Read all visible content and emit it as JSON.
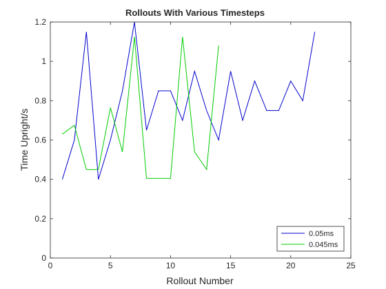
{
  "chart_data": {
    "type": "line",
    "title": "Rollouts With Various Timesteps",
    "xlabel": "Rollout Number",
    "ylabel": "Time Upright/s",
    "xlim": [
      0,
      25
    ],
    "ylim": [
      0,
      1.2
    ],
    "xticks": [
      "0",
      "5",
      "10",
      "15",
      "20",
      "25"
    ],
    "yticks": [
      "0",
      "0.2",
      "0.4",
      "0.6",
      "0.8",
      "1",
      "1.2"
    ],
    "grid": false,
    "legend_position": "bottom-right",
    "series": [
      {
        "name": "0.05ms",
        "color": "#0000cc",
        "x": [
          1,
          2,
          3,
          4,
          5,
          6,
          7,
          8,
          9,
          10,
          11,
          12,
          13,
          14,
          15,
          16,
          17,
          18,
          19,
          20,
          21,
          22
        ],
        "y": [
          0.4,
          0.6,
          1.15,
          0.4,
          0.6,
          0.85,
          1.2,
          0.65,
          0.85,
          0.85,
          0.7,
          0.95,
          0.75,
          0.6,
          0.95,
          0.7,
          0.9,
          0.75,
          0.75,
          0.9,
          0.8,
          1.15
        ]
      },
      {
        "name": "0.045ms",
        "color": "#00cc00",
        "x": [
          1,
          2,
          3,
          4,
          5,
          6,
          7,
          8,
          9,
          10,
          11,
          12,
          13,
          14
        ],
        "y": [
          0.63,
          0.675,
          0.45,
          0.45,
          0.765,
          0.54,
          1.125,
          0.405,
          0.405,
          0.405,
          1.125,
          0.54,
          0.45,
          1.08
        ]
      }
    ]
  }
}
